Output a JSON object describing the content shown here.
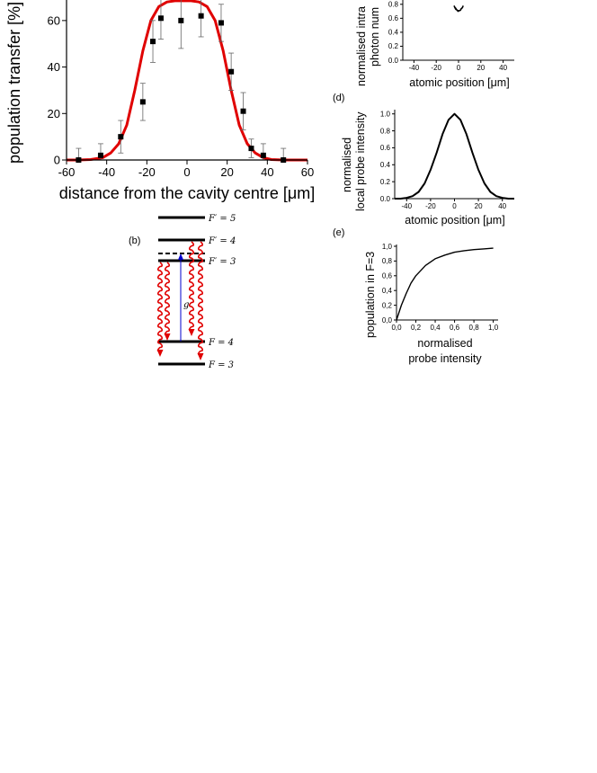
{
  "colors": {
    "fit": "#e00000",
    "data": "#000000",
    "arrow": "#e00000",
    "coupling": "#0000cc"
  },
  "panels": {
    "main": {
      "xlabel": "distance from the cavity centre [μm]",
      "ylabel": "population transfer  [%]",
      "xticks": [
        "-60",
        "-40",
        "-20",
        "0",
        "20",
        "40",
        "60"
      ],
      "yticks": [
        "0",
        "20",
        "40",
        "60"
      ]
    },
    "b": {
      "label": "(b)",
      "levels": [
        "F′ = 5",
        "F′ = 4",
        "F′ = 3",
        "F = 4",
        "F = 3"
      ],
      "coupling_label": "g"
    },
    "c": {
      "ylabel_line1": "normalised intra",
      "ylabel_line2": "photon num",
      "xlabel": "atomic position [μm]",
      "xticks": [
        "-40",
        "-20",
        "0",
        "20",
        "40"
      ],
      "yticks": [
        "0.0",
        "0.2",
        "0.4",
        "0.6",
        "0.8"
      ]
    },
    "d": {
      "label": "(d)",
      "ylabel_line1": "normalised",
      "ylabel_line2": "local probe intensity",
      "xlabel": "atomic position [μm]",
      "xticks": [
        "-40",
        "-20",
        "0",
        "20",
        "40"
      ],
      "yticks": [
        "0.0",
        "0.2",
        "0.4",
        "0.6",
        "0.8",
        "1.0"
      ]
    },
    "e": {
      "label": "(e)",
      "ylabel": "population in F=3",
      "xlabel_line1": "normalised",
      "xlabel_line2": "probe intensity",
      "xticks": [
        "0,0",
        "0,2",
        "0,4",
        "0,6",
        "0,8",
        "1,0"
      ],
      "yticks": [
        "0,0",
        "0,2",
        "0,4",
        "0,6",
        "0,8",
        "1,0"
      ]
    }
  },
  "chart_data": [
    {
      "type": "scatter",
      "xlabel": "distance from the cavity centre [μm]",
      "ylabel": "population transfer  [%]",
      "xlim": [
        -60,
        60
      ],
      "ylim": [
        0,
        70
      ],
      "series": [
        {
          "x": [
            -54,
            -43,
            -33,
            -22,
            -17,
            -13,
            -3,
            7,
            17,
            22,
            28,
            32,
            38,
            48
          ],
          "y": [
            0,
            2,
            10,
            25,
            51,
            61,
            60,
            62,
            59,
            38,
            21,
            5,
            2,
            0
          ],
          "err": [
            5,
            5,
            7,
            8,
            9,
            9,
            12,
            9,
            8,
            8,
            8,
            4,
            5,
            5
          ]
        },
        {
          "x": [
            -60,
            -54,
            -48,
            -42,
            -38,
            -34,
            -30,
            -26,
            -22,
            -18,
            -14,
            -10,
            -6,
            -2,
            2,
            6,
            10,
            14,
            18,
            22,
            26,
            30,
            34,
            38,
            42,
            48,
            54,
            60
          ],
          "y": [
            0,
            0,
            0.2,
            1,
            3,
            7,
            15,
            30,
            47,
            60,
            66,
            68,
            68.5,
            68.5,
            68.5,
            68,
            66,
            60,
            47,
            30,
            15,
            7,
            3,
            1,
            0.2,
            0,
            0,
            0
          ]
        }
      ]
    },
    {
      "type": "line",
      "xlabel": "atomic position [μm]",
      "ylabel": "normalised intra photon num",
      "xlim": [
        -50,
        50
      ],
      "ylim": [
        0,
        0.9
      ],
      "x": [
        -4,
        -2,
        0,
        2,
        4
      ],
      "y": [
        0.78,
        0.73,
        0.71,
        0.73,
        0.78
      ]
    },
    {
      "type": "line",
      "xlabel": "atomic position [μm]",
      "ylabel": "normalised local probe intensity",
      "xlim": [
        -50,
        50
      ],
      "ylim": [
        0,
        1.05
      ],
      "x": [
        -50,
        -45,
        -40,
        -35,
        -30,
        -25,
        -20,
        -15,
        -10,
        -5,
        0,
        5,
        10,
        15,
        20,
        25,
        30,
        35,
        40,
        45,
        50
      ],
      "y": [
        0.0,
        0.0,
        0.01,
        0.03,
        0.08,
        0.18,
        0.34,
        0.54,
        0.76,
        0.93,
        1.0,
        0.93,
        0.76,
        0.54,
        0.34,
        0.18,
        0.08,
        0.03,
        0.01,
        0.0,
        0.0
      ]
    },
    {
      "type": "line",
      "xlabel": "normalised probe intensity",
      "ylabel": "population in F=3",
      "xlim": [
        0,
        1.05
      ],
      "ylim": [
        0,
        1.0
      ],
      "x": [
        0,
        0.05,
        0.1,
        0.15,
        0.2,
        0.3,
        0.4,
        0.5,
        0.6,
        0.7,
        0.8,
        0.9,
        1.0
      ],
      "y": [
        0,
        0.2,
        0.36,
        0.5,
        0.6,
        0.74,
        0.83,
        0.88,
        0.92,
        0.94,
        0.955,
        0.965,
        0.975
      ]
    }
  ]
}
